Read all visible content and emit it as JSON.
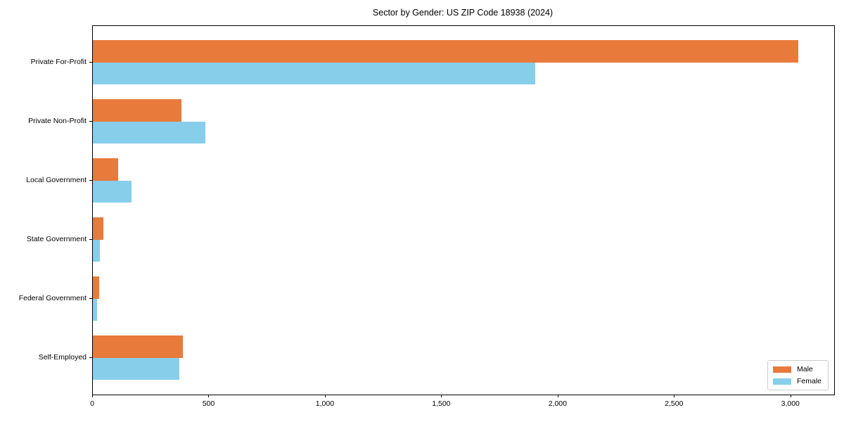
{
  "title": "Sector by Gender: US ZIP Code 18938 (2024)",
  "colors": {
    "male": "#e87a3c",
    "female": "#87ceeb",
    "axis": "#000000",
    "legend_border": "#cccccc",
    "background": "#ffffff"
  },
  "chart_data": {
    "type": "bar",
    "orientation": "horizontal",
    "title": "Sector by Gender: US ZIP Code 18938 (2024)",
    "xlabel": "",
    "ylabel": "",
    "categories": [
      "Private For-Profit",
      "Private Non-Profit",
      "Local Government",
      "State Government",
      "Federal Government",
      "Self-Employed"
    ],
    "series": [
      {
        "name": "Male",
        "color": "#e87a3c",
        "values": [
          3030,
          381,
          108,
          44,
          26,
          387
        ]
      },
      {
        "name": "Female",
        "color": "#87ceeb",
        "values": [
          1900,
          483,
          166,
          29,
          18,
          373
        ]
      }
    ],
    "xlim": [
      0,
      3185
    ],
    "x_ticks": [
      0,
      500,
      1000,
      1500,
      2000,
      2500,
      3000
    ],
    "x_tick_labels": [
      "0",
      "500",
      "1,000",
      "1,500",
      "2,000",
      "2,500",
      "3,000"
    ],
    "grid": false,
    "legend_position": "lower right"
  },
  "legend": {
    "items": [
      {
        "label": "Male",
        "color": "#e87a3c"
      },
      {
        "label": "Female",
        "color": "#87ceeb"
      }
    ]
  }
}
